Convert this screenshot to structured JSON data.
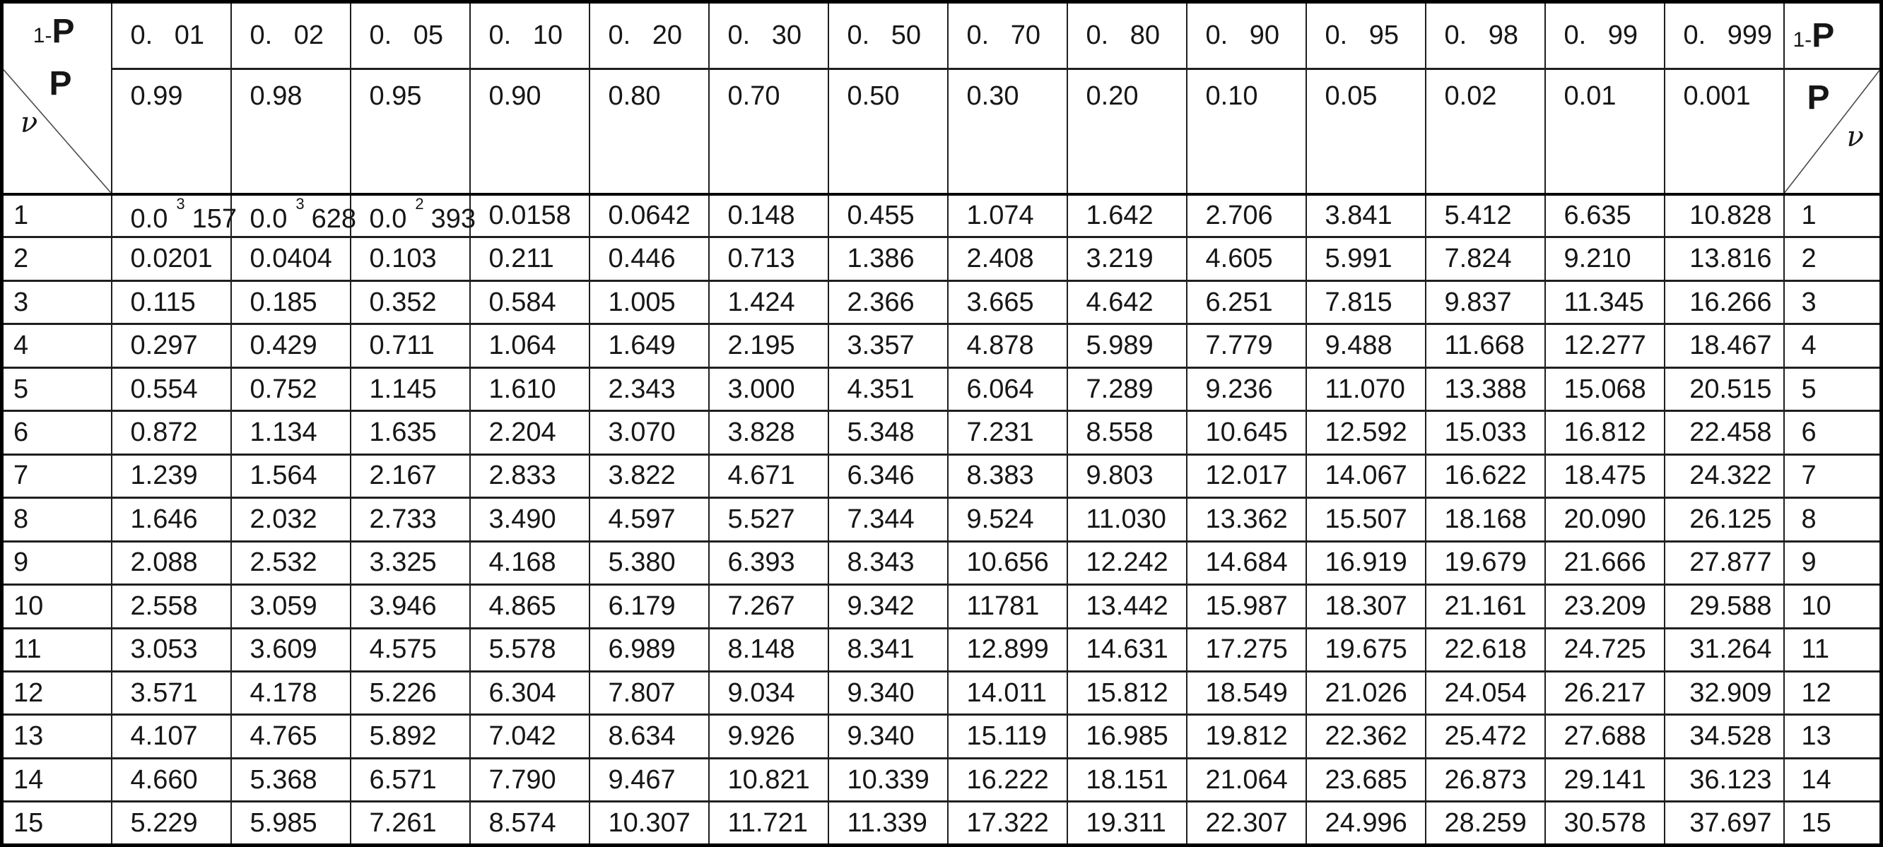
{
  "table": {
    "corner_left": {
      "top_small": "1-",
      "top_big": "P",
      "mid": "P",
      "nu": "ν"
    },
    "corner_right": {
      "top_small": "1-",
      "top_big": "P",
      "mid": "P",
      "nu": "ν"
    },
    "header_one_minus_p": [
      "0. 01",
      "0. 02",
      "0. 05",
      "0. 10",
      "0. 20",
      "0. 30",
      "0. 50",
      "0. 70",
      "0. 80",
      "0. 90",
      "0. 95",
      "0. 98",
      "0. 99",
      "0. 999"
    ],
    "header_p": [
      "0.99",
      "0.98",
      "0.95",
      "0.90",
      "0.80",
      "0.70",
      "0.50",
      "0.30",
      "0.20",
      "0.10",
      "0.05",
      "0.02",
      "0.01",
      "0.001"
    ],
    "rows": [
      {
        "nu": "1",
        "values": [
          {
            "pre": "0.0",
            "sup": "3",
            "post": "157"
          },
          {
            "pre": "0.0",
            "sup": "3",
            "post": "628"
          },
          {
            "pre": "0.0",
            "sup": "2",
            "post": "393"
          },
          "0.0158",
          "0.0642",
          "0.148",
          "0.455",
          "1.074",
          "1.642",
          "2.706",
          "3.841",
          "5.412",
          "6.635",
          "10.828"
        ]
      },
      {
        "nu": "2",
        "values": [
          "0.0201",
          "0.0404",
          "0.103",
          "0.211",
          "0.446",
          "0.713",
          "1.386",
          "2.408",
          "3.219",
          "4.605",
          "5.991",
          "7.824",
          "9.210",
          "13.816"
        ]
      },
      {
        "nu": "3",
        "values": [
          "0.115",
          "0.185",
          "0.352",
          "0.584",
          "1.005",
          "1.424",
          "2.366",
          "3.665",
          "4.642",
          "6.251",
          "7.815",
          "9.837",
          "11.345",
          "16.266"
        ]
      },
      {
        "nu": "4",
        "values": [
          "0.297",
          "0.429",
          "0.711",
          "1.064",
          "1.649",
          "2.195",
          "3.357",
          "4.878",
          "5.989",
          "7.779",
          "9.488",
          "11.668",
          "12.277",
          "18.467"
        ]
      },
      {
        "nu": "5",
        "values": [
          "0.554",
          "0.752",
          "1.145",
          "1.610",
          "2.343",
          "3.000",
          "4.351",
          "6.064",
          "7.289",
          "9.236",
          "11.070",
          "13.388",
          "15.068",
          "20.515"
        ]
      },
      {
        "nu": "6",
        "values": [
          "0.872",
          "1.134",
          "1.635",
          "2.204",
          "3.070",
          "3.828",
          "5.348",
          "7.231",
          "8.558",
          "10.645",
          "12.592",
          "15.033",
          "16.812",
          "22.458"
        ]
      },
      {
        "nu": "7",
        "values": [
          "1.239",
          "1.564",
          "2.167",
          "2.833",
          "3.822",
          "4.671",
          "6.346",
          "8.383",
          "9.803",
          "12.017",
          "14.067",
          "16.622",
          "18.475",
          "24.322"
        ]
      },
      {
        "nu": "8",
        "values": [
          "1.646",
          "2.032",
          "2.733",
          "3.490",
          "4.597",
          "5.527",
          "7.344",
          "9.524",
          "11.030",
          "13.362",
          "15.507",
          "18.168",
          "20.090",
          "26.125"
        ]
      },
      {
        "nu": "9",
        "values": [
          "2.088",
          "2.532",
          "3.325",
          "4.168",
          "5.380",
          "6.393",
          "8.343",
          "10.656",
          "12.242",
          "14.684",
          "16.919",
          "19.679",
          "21.666",
          "27.877"
        ]
      },
      {
        "nu": "10",
        "values": [
          "2.558",
          "3.059",
          "3.946",
          "4.865",
          "6.179",
          "7.267",
          "9.342",
          "11781",
          "13.442",
          "15.987",
          "18.307",
          "21.161",
          "23.209",
          "29.588"
        ]
      },
      {
        "nu": "11",
        "values": [
          "3.053",
          "3.609",
          "4.575",
          "5.578",
          "6.989",
          "8.148",
          "8.341",
          "12.899",
          "14.631",
          "17.275",
          "19.675",
          "22.618",
          "24.725",
          "31.264"
        ]
      },
      {
        "nu": "12",
        "values": [
          "3.571",
          "4.178",
          "5.226",
          "6.304",
          "7.807",
          "9.034",
          "9.340",
          "14.011",
          "15.812",
          "18.549",
          "21.026",
          "24.054",
          "26.217",
          "32.909"
        ]
      },
      {
        "nu": "13",
        "values": [
          "4.107",
          "4.765",
          "5.892",
          "7.042",
          "8.634",
          "9.926",
          "9.340",
          "15.119",
          "16.985",
          "19.812",
          "22.362",
          "25.472",
          "27.688",
          "34.528"
        ]
      },
      {
        "nu": "14",
        "values": [
          "4.660",
          "5.368",
          "6.571",
          "7.790",
          "9.467",
          "10.821",
          "10.339",
          "16.222",
          "18.151",
          "21.064",
          "23.685",
          "26.873",
          "29.141",
          "36.123"
        ]
      },
      {
        "nu": "15",
        "values": [
          "5.229",
          "5.985",
          "7.261",
          "8.574",
          "10.307",
          "11.721",
          "11.339",
          "17.322",
          "19.311",
          "22.307",
          "24.996",
          "28.259",
          "30.578",
          "37.697"
        ]
      }
    ]
  }
}
